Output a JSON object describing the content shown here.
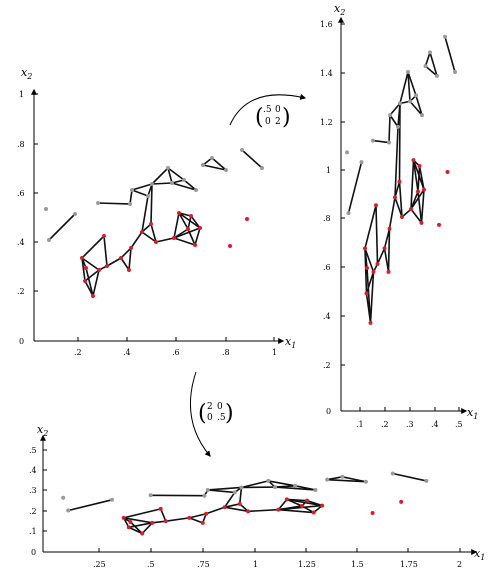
{
  "colors": {
    "red": "#d4202c",
    "grey": "#9a9a9a",
    "edge": "#111111"
  },
  "panels": {
    "a": {
      "xlabel": "x",
      "xlabel_sub": "1",
      "ylabel": "x",
      "ylabel_sub": "2",
      "x_ticks": [
        ".2",
        ".4",
        ".6",
        ".8",
        "1"
      ],
      "y_ticks": [
        ".2",
        ".4",
        ".6",
        ".8",
        "1"
      ],
      "origin_label": "0"
    },
    "b": {
      "xlabel": "x",
      "xlabel_sub": "1",
      "ylabel": "x",
      "ylabel_sub": "2",
      "x_ticks": [
        ".1",
        ".2",
        ".3",
        ".4",
        ".5"
      ],
      "y_ticks": [
        ".2",
        ".4",
        ".6",
        ".8",
        "1",
        "1.2",
        "1.4",
        "1.6"
      ],
      "origin_label": "0"
    },
    "c": {
      "xlabel": "x",
      "xlabel_sub": "1",
      "ylabel": "x",
      "ylabel_sub": "2",
      "x_ticks": [
        ".25",
        ".5",
        ".75",
        "1",
        "1.25",
        "1.5",
        "1.75",
        "2"
      ],
      "y_ticks": [
        ".1",
        ".2",
        ".3",
        ".4",
        ".5"
      ],
      "origin_label": "0"
    }
  },
  "transforms": {
    "to_b": {
      "row1": [
        ".5",
        "0"
      ],
      "row2": [
        "0",
        "2"
      ]
    },
    "to_c": {
      "row1": [
        "2",
        "0"
      ],
      "row2": [
        "0",
        ".5"
      ]
    }
  }
}
